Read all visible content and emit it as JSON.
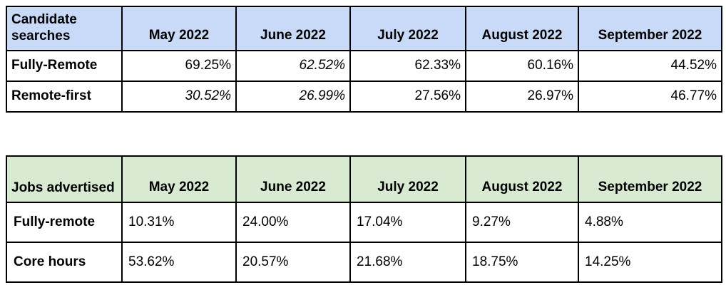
{
  "page_bg": "#ffffff",
  "grid_border_color": "#000000",
  "tables": [
    {
      "title": "Candidate searches",
      "header_bg": "#c9daf8",
      "columns": [
        "May 2022",
        "June 2022",
        "July 2022",
        "August 2022",
        "September 2022"
      ],
      "value_alignment": "right",
      "rows": [
        {
          "label": "Fully-Remote",
          "values": [
            "69.25%",
            "62.52%",
            "62.33%",
            "60.16%",
            "44.52%"
          ],
          "italic_values": [
            false,
            true,
            false,
            false,
            false
          ]
        },
        {
          "label": "Remote-first",
          "values": [
            "30.52%",
            "26.99%",
            "27.56%",
            "26.97%",
            "46.77%"
          ],
          "italic_values": [
            true,
            true,
            false,
            false,
            false
          ]
        }
      ]
    },
    {
      "title": "Jobs advertised",
      "header_bg": "#d9ead3",
      "columns": [
        "May 2022",
        "June 2022",
        "July 2022",
        "August 2022",
        "September 2022"
      ],
      "value_alignment": "left",
      "rows": [
        {
          "label": "Fully-remote",
          "values": [
            "10.31%",
            "24.00%",
            "17.04%",
            "9.27%",
            "4.88%"
          ],
          "italic_values": [
            false,
            false,
            false,
            false,
            false
          ]
        },
        {
          "label": "Core hours",
          "values": [
            "53.62%",
            "20.57%",
            "21.68%",
            "18.75%",
            "14.25%"
          ],
          "italic_values": [
            false,
            false,
            false,
            false,
            false
          ]
        }
      ]
    }
  ]
}
